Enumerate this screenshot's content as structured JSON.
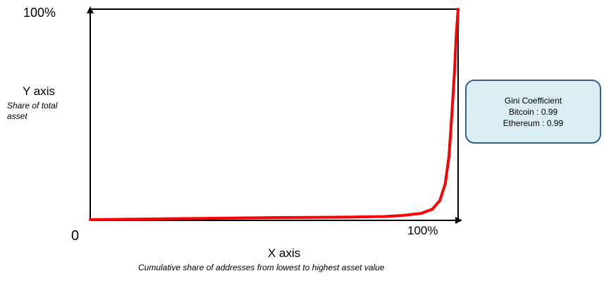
{
  "chart_data": {
    "type": "line",
    "title": "",
    "y_axis": {
      "title": "Y axis",
      "subtitle": "Share of total asset",
      "top_label": "100%"
    },
    "x_axis": {
      "title": "X axis",
      "subtitle": "Cumulative share of addresses from lowest to highest asset value",
      "right_label": "100%"
    },
    "origin_label": "0",
    "xlim": [
      0,
      100
    ],
    "ylim": [
      0,
      100
    ],
    "series": [
      {
        "color": "#ff0000",
        "x": [
          0,
          10,
          20,
          30,
          40,
          50,
          60,
          70,
          80,
          85,
          90,
          93,
          95,
          96.5,
          97.5,
          98.3,
          99,
          99.5,
          100
        ],
        "y": [
          0,
          0.2,
          0.4,
          0.6,
          0.8,
          1.0,
          1.1,
          1.2,
          1.5,
          2,
          3,
          5,
          9,
          17,
          30,
          50,
          70,
          88,
          100
        ]
      }
    ],
    "annotation": {
      "lines": [
        "Gini Coefficient",
        "Bitcoin : 0.99",
        "Ethereum : 0.99"
      ]
    }
  }
}
